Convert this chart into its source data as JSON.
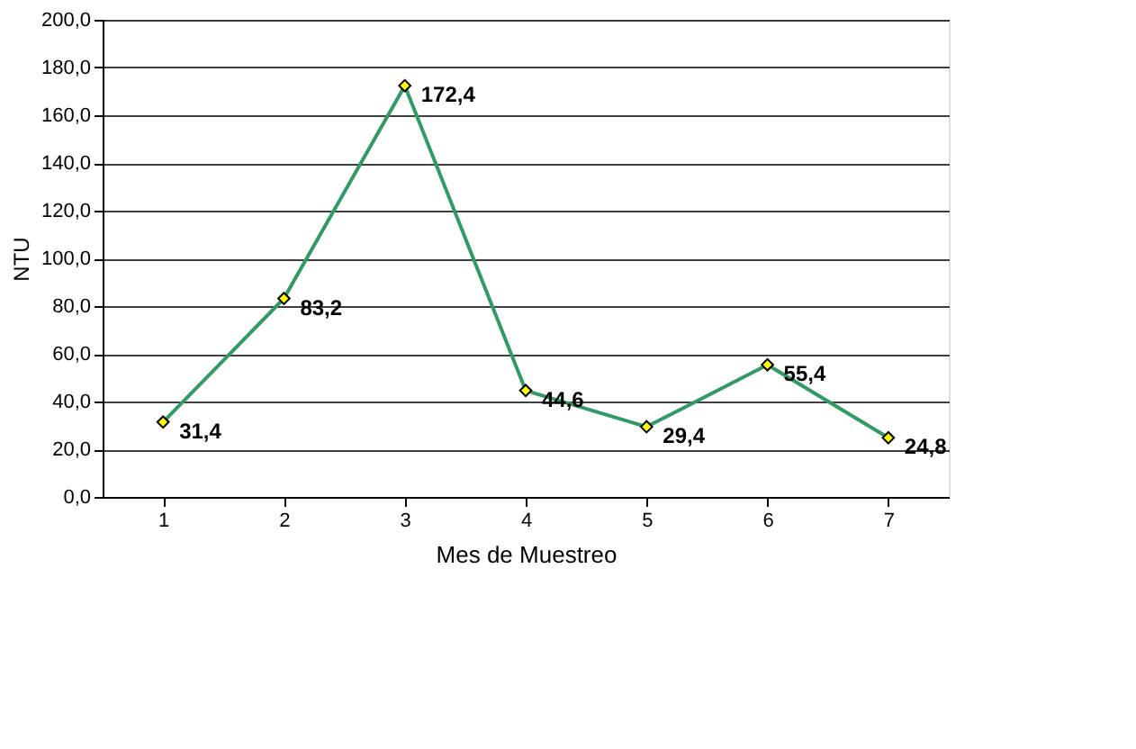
{
  "chart_data": {
    "type": "line",
    "xlabel": "Mes de Muestreo",
    "ylabel": "NTU",
    "categories": [
      "1",
      "2",
      "3",
      "4",
      "5",
      "6",
      "7"
    ],
    "series": [
      {
        "color": "#339966",
        "values": [
          31.4,
          83.2,
          172.4,
          44.6,
          29.4,
          55.4,
          24.8
        ],
        "value_labels": [
          "31,4",
          "83,2",
          "172,4",
          "44,6",
          "29,4",
          "55,4",
          "24,8"
        ]
      }
    ],
    "ylim": [
      0,
      200
    ],
    "yticks": [
      {
        "value": 0,
        "label": "0,0"
      },
      {
        "value": 20,
        "label": "20,0"
      },
      {
        "value": 40,
        "label": "40,0"
      },
      {
        "value": 60,
        "label": "60,0"
      },
      {
        "value": 80,
        "label": "80,0"
      },
      {
        "value": 100,
        "label": "100,0"
      },
      {
        "value": 120,
        "label": "120,0"
      },
      {
        "value": 140,
        "label": "140,0"
      },
      {
        "value": 160,
        "label": "160,0"
      },
      {
        "value": 180,
        "label": "180,0"
      },
      {
        "value": 200,
        "label": "200,0"
      }
    ],
    "grid": "y",
    "legend": false,
    "marker": "diamond",
    "line_style": "solid"
  }
}
